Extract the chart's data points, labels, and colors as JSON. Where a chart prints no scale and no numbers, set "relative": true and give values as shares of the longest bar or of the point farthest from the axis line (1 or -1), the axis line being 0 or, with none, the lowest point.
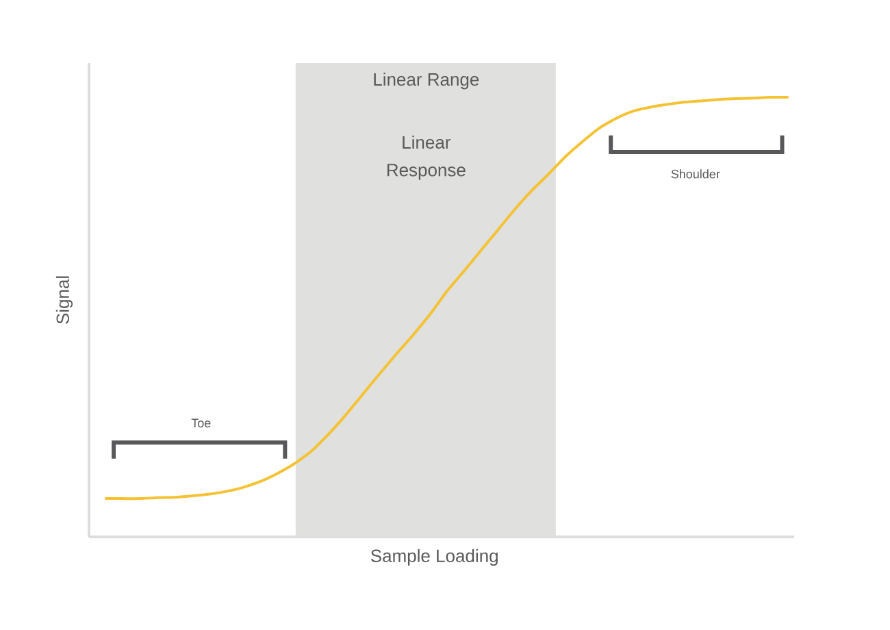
{
  "chart_data": {
    "type": "line",
    "relative": true,
    "categories": [
      null,
      null,
      null,
      null,
      null,
      null,
      null,
      null,
      null,
      null,
      null,
      null,
      null,
      null,
      null,
      null,
      null,
      null,
      null,
      null,
      null,
      null,
      null,
      null,
      null,
      null,
      null,
      null,
      null,
      null,
      null,
      null,
      null,
      null,
      null,
      null,
      null,
      null,
      null,
      null,
      null
    ],
    "values": [
      0.087,
      0.087,
      0.087,
      0.089,
      0.09,
      0.093,
      0.097,
      0.103,
      0.112,
      0.125,
      0.143,
      0.165,
      0.193,
      0.231,
      0.274,
      0.321,
      0.368,
      0.414,
      0.458,
      0.505,
      0.558,
      0.604,
      0.651,
      0.698,
      0.745,
      0.788,
      0.826,
      0.866,
      0.9,
      0.931,
      0.953,
      0.969,
      0.978,
      0.984,
      0.989,
      0.992,
      0.995,
      0.997,
      0.998,
      1.0,
      1.0
    ],
    "color": "#f4c233",
    "xlabel": "Sample Loading",
    "ylabel": "Signal",
    "annotations": [
      "Linear Range",
      "Linear Response",
      "Shoulder",
      "Toe"
    ]
  }
}
